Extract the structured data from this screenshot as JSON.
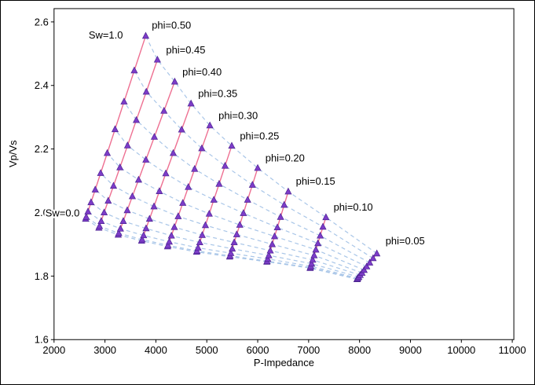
{
  "chart_data": {
    "type": "line",
    "title": "",
    "xlabel": "P-Impedance",
    "ylabel": "Vp/Vs",
    "marker": "triangle-up",
    "grid": false,
    "legend": "none",
    "axes": {
      "xlim": [
        2000,
        11050
      ],
      "ylim": [
        1.6,
        2.64
      ],
      "x_ticks": [
        2000,
        3000,
        4000,
        5000,
        6000,
        7000,
        8000,
        9000,
        10000,
        11000
      ],
      "x_tick_labels": [
        "2000",
        "3000",
        "4000",
        "5000",
        "6000",
        "7000",
        "8000",
        "9000",
        "10000",
        "11000"
      ],
      "y_ticks": [
        1.6,
        1.8,
        2.0,
        2.2,
        2.4,
        2.6
      ],
      "y_tick_labels": [
        "1.6",
        "1.8",
        "2.0",
        "2.2",
        "2.4",
        "2.6"
      ]
    },
    "sw": [
      0.0,
      0.1,
      0.2,
      0.3,
      0.4,
      0.5,
      0.6,
      0.7,
      0.8,
      0.9,
      1.0
    ],
    "series": [
      {
        "name": "phi=0.05",
        "phi": 0.05,
        "z": [
          7950,
          7954,
          7966,
          7985,
          8012,
          8048,
          8090,
          8141,
          8200,
          8266,
          8340
        ],
        "vpvs": [
          1.79,
          1.791,
          1.793,
          1.797,
          1.803,
          1.81,
          1.819,
          1.83,
          1.842,
          1.856,
          1.871
        ]
      },
      {
        "name": "phi=0.10",
        "phi": 0.1,
        "z": [
          7030,
          7033,
          7042,
          7058,
          7080,
          7108,
          7142,
          7182,
          7228,
          7281,
          7340
        ],
        "vpvs": [
          1.825,
          1.827,
          1.831,
          1.839,
          1.851,
          1.865,
          1.883,
          1.903,
          1.927,
          1.955,
          1.985
        ]
      },
      {
        "name": "phi=0.15",
        "phi": 0.15,
        "z": [
          6180,
          6184,
          6197,
          6218,
          6247,
          6285,
          6331,
          6386,
          6449,
          6520,
          6600
        ],
        "vpvs": [
          1.845,
          1.847,
          1.854,
          1.865,
          1.88,
          1.9,
          1.925,
          1.953,
          1.986,
          2.024,
          2.066
        ]
      },
      {
        "name": "phi=0.20",
        "phi": 0.2,
        "z": [
          5450,
          5456,
          5472,
          5500,
          5538,
          5588,
          5648,
          5720,
          5802,
          5896,
          6000
        ],
        "vpvs": [
          1.861,
          1.864,
          1.872,
          1.886,
          1.906,
          1.931,
          1.961,
          1.998,
          2.04,
          2.087,
          2.14
        ]
      },
      {
        "name": "phi=0.25",
        "phi": 0.25,
        "z": [
          4800,
          4807,
          4828,
          4862,
          4910,
          4973,
          5048,
          5138,
          5242,
          5359,
          5490
        ],
        "vpvs": [
          1.876,
          1.879,
          1.889,
          1.906,
          1.929,
          1.96,
          1.996,
          2.04,
          2.09,
          2.147,
          2.21
        ]
      },
      {
        "name": "phi=0.30",
        "phi": 0.3,
        "z": [
          4230,
          4238,
          4263,
          4305,
          4363,
          4438,
          4529,
          4637,
          4761,
          4902,
          5060
        ],
        "vpvs": [
          1.893,
          1.897,
          1.908,
          1.927,
          1.954,
          1.988,
          2.03,
          2.08,
          2.137,
          2.202,
          2.274
        ]
      },
      {
        "name": "phi=0.35",
        "phi": 0.35,
        "z": [
          3720,
          3730,
          3759,
          3807,
          3875,
          3963,
          4069,
          4195,
          4341,
          4506,
          4690
        ],
        "vpvs": [
          1.911,
          1.915,
          1.928,
          1.95,
          1.98,
          2.019,
          2.067,
          2.123,
          2.187,
          2.261,
          2.343
        ]
      },
      {
        "name": "phi=0.40",
        "phi": 0.4,
        "z": [
          3260,
          3271,
          3304,
          3360,
          3438,
          3538,
          3660,
          3804,
          3970,
          4159,
          4370
        ],
        "vpvs": [
          1.93,
          1.935,
          1.949,
          1.973,
          2.007,
          2.051,
          2.103,
          2.166,
          2.238,
          2.32,
          2.412
        ]
      },
      {
        "name": "phi=0.45",
        "phi": 0.45,
        "z": [
          2880,
          2892,
          2926,
          2984,
          3064,
          3168,
          3294,
          3444,
          3616,
          3812,
          4030
        ],
        "vpvs": [
          1.952,
          1.957,
          1.973,
          2.0,
          2.037,
          2.084,
          2.142,
          2.211,
          2.291,
          2.38,
          2.481
        ]
      },
      {
        "name": "phi=0.50",
        "phi": 0.5,
        "z": [
          2620,
          2632,
          2667,
          2726,
          2809,
          2915,
          3045,
          3198,
          3375,
          3576,
          3800
        ],
        "vpvs": [
          1.98,
          1.986,
          2.003,
          2.032,
          2.072,
          2.124,
          2.187,
          2.262,
          2.349,
          2.447,
          2.556
        ]
      }
    ],
    "annotations": [
      {
        "text": "phi=0.50",
        "x": 3920,
        "y": 2.588
      },
      {
        "text": "phi=0.45",
        "x": 4200,
        "y": 2.511
      },
      {
        "text": "phi=0.40",
        "x": 4520,
        "y": 2.442
      },
      {
        "text": "phi=0.35",
        "x": 4830,
        "y": 2.373
      },
      {
        "text": "phi=0.30",
        "x": 5230,
        "y": 2.304
      },
      {
        "text": "phi=0.25",
        "x": 5650,
        "y": 2.24
      },
      {
        "text": "phi=0.20",
        "x": 6150,
        "y": 2.171
      },
      {
        "text": "phi=0.15",
        "x": 6750,
        "y": 2.098
      },
      {
        "text": "phi=0.10",
        "x": 7490,
        "y": 2.016
      },
      {
        "text": "phi=0.05",
        "x": 8510,
        "y": 1.91
      },
      {
        "text": "Sw=1.0",
        "x": 2680,
        "y": 2.558
      },
      {
        "text": "Sw=0.0",
        "x": 1830,
        "y": 1.998
      }
    ]
  },
  "style": {
    "curve_color": "#ee6f91",
    "dashed_color": "#a9c6e8",
    "marker_fill": "#7d3cc8",
    "marker_edge": "#4d2492",
    "text_color": "#000000",
    "axis_color": "#000000",
    "background": "#ffffff"
  }
}
